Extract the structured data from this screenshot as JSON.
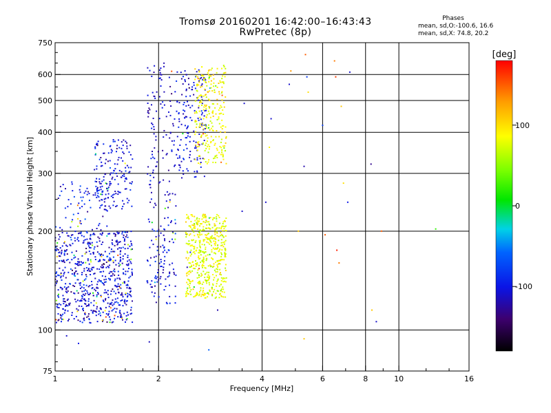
{
  "header": {
    "title_line1": "Tromsø 20160201 16:42:00–16:43:43",
    "title_line2": "RwPretec (8p)",
    "stats_title": "Phases",
    "stats_o": "mean, sd,O:-100.6, 16.6",
    "stats_x": "mean, sd,X:  74.8, 20.2"
  },
  "chart_data": {
    "type": "scatter",
    "xlabel": "Frequency [MHz]",
    "ylabel": "Stationary phase Virtual Height [km]",
    "xscale": "log",
    "yscale": "log",
    "xlim": [
      1,
      16
    ],
    "ylim": [
      75,
      750
    ],
    "x_ticks": [
      1,
      2,
      4,
      6,
      8,
      10,
      16
    ],
    "x_tick_labels": [
      "1",
      "2",
      "4",
      "6",
      "8",
      "10",
      "16"
    ],
    "x_gridlines": [
      2,
      4,
      6,
      8,
      10
    ],
    "y_ticks": [
      75,
      100,
      200,
      300,
      400,
      500,
      600,
      750
    ],
    "y_tick_labels": [
      "75",
      "100",
      "200",
      "300",
      "400",
      "500",
      "600",
      "750"
    ],
    "y_gridlines": [
      100,
      200,
      300,
      400,
      500,
      600
    ],
    "grid": true,
    "color_by": "phase",
    "colorbar": {
      "label": "[deg]",
      "min": -180,
      "max": 180,
      "ticks": [
        100,
        0,
        -100
      ],
      "tick_labels": [
        "100",
        "0",
        "-100"
      ]
    },
    "clusters": [
      {
        "name": "",
        "fmin": 1.0,
        "fmax": 1.68,
        "hmin": 105,
        "hmax": 200,
        "count": 700,
        "phase": -105,
        "phase_sd": 18,
        "color_mix": 0.08
      },
      {
        "name": "",
        "fmin": 1.0,
        "fmax": 1.45,
        "hmin": 200,
        "hmax": 285,
        "count": 80,
        "phase": -100,
        "phase_sd": 20,
        "color_mix": 0.1
      },
      {
        "name": "",
        "fmin": 1.3,
        "fmax": 1.68,
        "hmin": 230,
        "hmax": 380,
        "count": 160,
        "phase": -105,
        "phase_sd": 14,
        "color_mix": 0.03
      },
      {
        "name": "",
        "fmin": 1.85,
        "fmax": 2.25,
        "hmin": 120,
        "hmax": 220,
        "count": 110,
        "phase": -105,
        "phase_sd": 15,
        "color_mix": 0.08
      },
      {
        "name": "",
        "fmin": 1.85,
        "fmax": 2.25,
        "hmin": 230,
        "hmax": 650,
        "count": 120,
        "phase": -110,
        "phase_sd": 12,
        "color_mix": 0.03
      },
      {
        "name": "",
        "fmin": 2.25,
        "fmax": 2.75,
        "hmin": 290,
        "hmax": 620,
        "count": 160,
        "phase": -105,
        "phase_sd": 12,
        "color_mix": 0.04
      },
      {
        "name": "",
        "fmin": 2.4,
        "fmax": 3.15,
        "hmin": 125,
        "hmax": 225,
        "count": 520,
        "phase": 80,
        "phase_sd": 14,
        "color_mix": 0.02
      },
      {
        "name": "",
        "fmin": 2.55,
        "fmax": 3.15,
        "hmin": 320,
        "hmax": 640,
        "count": 260,
        "phase": 85,
        "phase_sd": 14,
        "color_mix": 0.03
      }
    ],
    "sparse_points": [
      {
        "f": 1.08,
        "h": 96,
        "phase": -110
      },
      {
        "f": 1.17,
        "h": 91,
        "phase": -100
      },
      {
        "f": 1.88,
        "h": 92,
        "phase": -115
      },
      {
        "f": 2.8,
        "h": 87,
        "phase": -60
      },
      {
        "f": 2.97,
        "h": 115,
        "phase": -120
      },
      {
        "f": 3.5,
        "h": 230,
        "phase": -110
      },
      {
        "f": 3.55,
        "h": 490,
        "phase": -110
      },
      {
        "f": 4.1,
        "h": 245,
        "phase": -110
      },
      {
        "f": 4.2,
        "h": 360,
        "phase": 90
      },
      {
        "f": 4.25,
        "h": 440,
        "phase": -110
      },
      {
        "f": 4.8,
        "h": 560,
        "phase": -110
      },
      {
        "f": 4.85,
        "h": 615,
        "phase": 130
      },
      {
        "f": 5.3,
        "h": 315,
        "phase": -120
      },
      {
        "f": 5.35,
        "h": 690,
        "phase": 150
      },
      {
        "f": 5.4,
        "h": 590,
        "phase": -80
      },
      {
        "f": 5.45,
        "h": 530,
        "phase": 100
      },
      {
        "f": 5.3,
        "h": 94,
        "phase": 110
      },
      {
        "f": 5.1,
        "h": 200,
        "phase": 110
      },
      {
        "f": 6.0,
        "h": 420,
        "phase": -80
      },
      {
        "f": 6.1,
        "h": 195,
        "phase": 150
      },
      {
        "f": 6.5,
        "h": 660,
        "phase": 140
      },
      {
        "f": 6.55,
        "h": 590,
        "phase": 160
      },
      {
        "f": 6.6,
        "h": 175,
        "phase": 170
      },
      {
        "f": 6.7,
        "h": 160,
        "phase": 140
      },
      {
        "f": 6.8,
        "h": 480,
        "phase": 110
      },
      {
        "f": 6.9,
        "h": 280,
        "phase": 100
      },
      {
        "f": 7.1,
        "h": 245,
        "phase": -100
      },
      {
        "f": 7.2,
        "h": 610,
        "phase": -110
      },
      {
        "f": 8.3,
        "h": 320,
        "phase": -130
      },
      {
        "f": 8.35,
        "h": 115,
        "phase": 110
      },
      {
        "f": 8.6,
        "h": 106,
        "phase": -110
      },
      {
        "f": 8.9,
        "h": 200,
        "phase": 150
      },
      {
        "f": 12.8,
        "h": 203,
        "phase": 20
      }
    ]
  }
}
